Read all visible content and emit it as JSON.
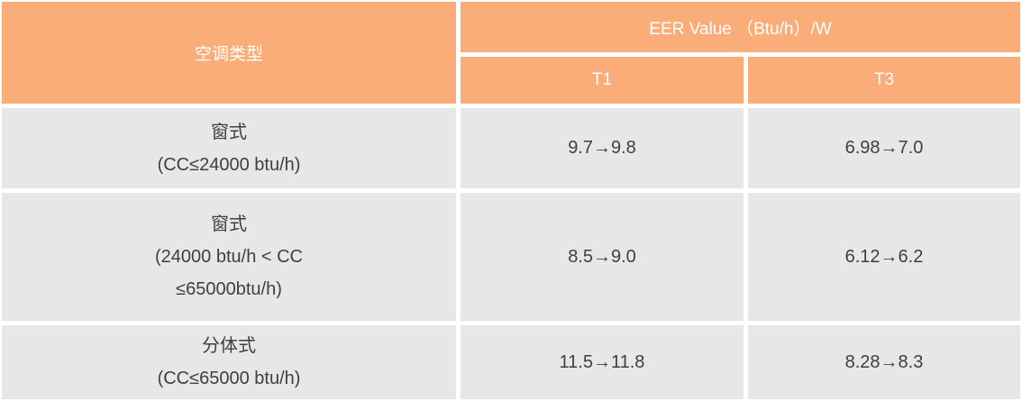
{
  "colors": {
    "header_bg": "#faad78",
    "header_text": "#ffffff",
    "row_bg": "#e8e7e7",
    "body_text": "#3f3f3f",
    "gap": "#ffffff"
  },
  "table": {
    "type_column_header": "空调类型",
    "group_header": "EER Value （Btu/h）/W",
    "sub_headers": {
      "t1": "T1",
      "t3": "T3"
    },
    "rows": [
      {
        "lines": [
          "窗式",
          "(CC≤24000 btu/h)"
        ],
        "t1": "9.7→9.8",
        "t3": "6.98→7.0"
      },
      {
        "lines": [
          "窗式",
          "(24000 btu/h < CC",
          "≤65000btu/h)"
        ],
        "t1": "8.5→9.0",
        "t3": "6.12→6.2"
      },
      {
        "lines": [
          "分体式",
          "(CC≤65000 btu/h)"
        ],
        "t1": "11.5→11.8",
        "t3": "8.28→8.3"
      }
    ]
  }
}
